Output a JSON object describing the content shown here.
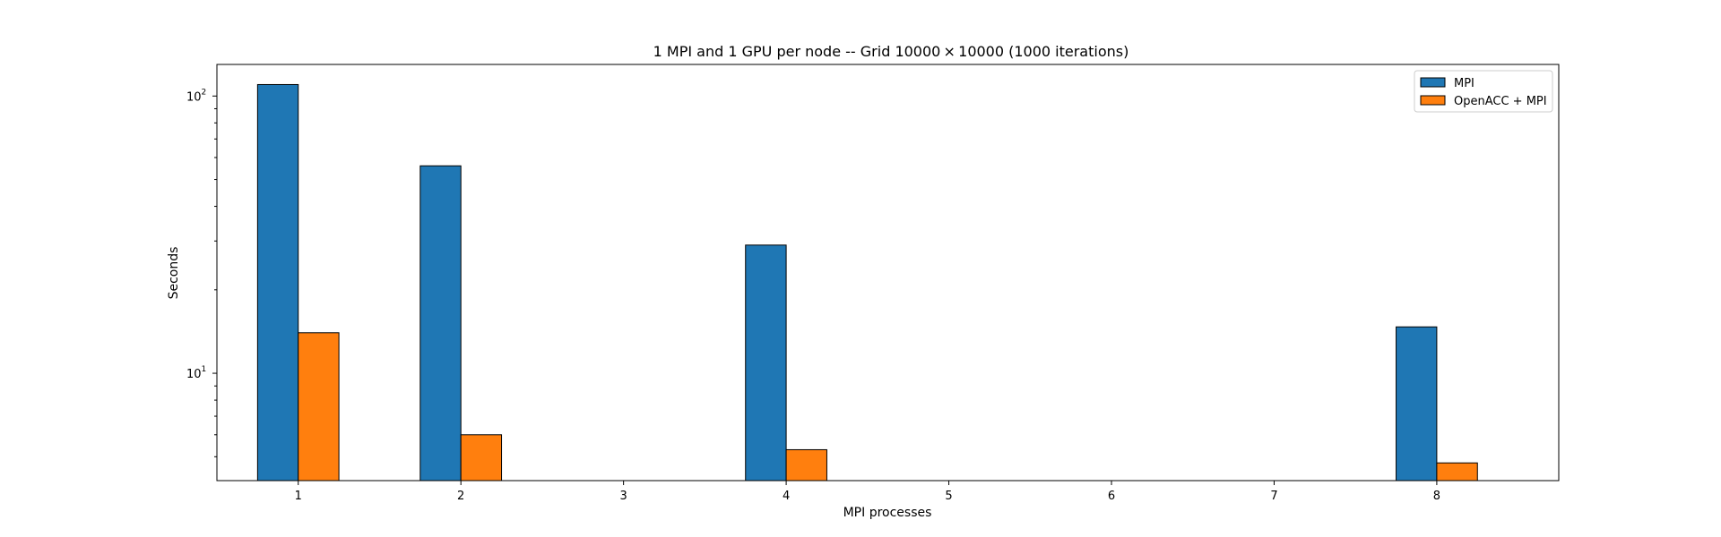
{
  "chart_data": {
    "type": "bar",
    "title": "1 MPI and 1 GPU per node -- Grid 10000 × 10000 (1000 iterations)",
    "xlabel": "MPI processes",
    "ylabel": "Seconds",
    "yscale": "log",
    "ylim": [
      4.1,
      130
    ],
    "xlim": [
      0.5,
      8.75
    ],
    "x_ticks": [
      "1",
      "2",
      "3",
      "4",
      "5",
      "6",
      "7",
      "8"
    ],
    "y_major_ticks": [
      {
        "value": 10,
        "base": "10",
        "exp": "1"
      },
      {
        "value": 100,
        "base": "10",
        "exp": "2"
      }
    ],
    "y_minor_ticks": [
      5,
      6,
      7,
      8,
      9,
      20,
      30,
      40,
      50,
      60,
      70,
      80,
      90
    ],
    "grid": false,
    "legend_position": "top-right",
    "series": [
      {
        "name": "MPI",
        "color": "#1f77b4",
        "x": [
          1,
          2,
          4,
          8
        ],
        "values": [
          110,
          56,
          29,
          14.7
        ]
      },
      {
        "name": "OpenACC + MPI",
        "color": "#ff7f0e",
        "x": [
          1,
          2,
          4,
          8
        ],
        "values": [
          14,
          6.0,
          5.3,
          4.75
        ]
      }
    ]
  }
}
